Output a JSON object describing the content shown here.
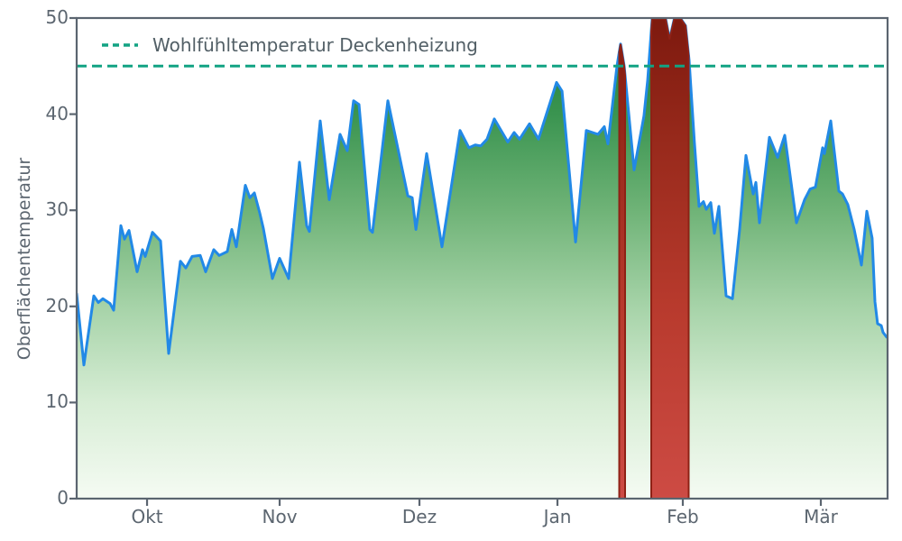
{
  "legend": {
    "label": "Wohlfühltemperatur Deckenheizung"
  },
  "chart_data": {
    "type": "area",
    "title": "",
    "xlabel": "",
    "ylabel": "Oberflächentemperatur",
    "ylim": [
      0,
      50
    ],
    "y_ticks": [
      0,
      10,
      20,
      30,
      40,
      50
    ],
    "x_ticks": [
      {
        "label": "Okt",
        "pos": 0.0868
      },
      {
        "label": "Nov",
        "pos": 0.2503
      },
      {
        "label": "Dez",
        "pos": 0.4227
      },
      {
        "label": "Jan",
        "pos": 0.5929
      },
      {
        "label": "Feb",
        "pos": 0.7475
      },
      {
        "label": "Mär",
        "pos": 0.9177
      }
    ],
    "threshold": {
      "value": 45,
      "label": "Wohlfühltemperatur Deckenheizung"
    },
    "series": {
      "name": "Oberflächentemperatur",
      "points": [
        [
          0.0,
          21.3
        ],
        [
          0.0089,
          13.9
        ],
        [
          0.0211,
          21.1
        ],
        [
          0.0267,
          20.4
        ],
        [
          0.0323,
          20.8
        ],
        [
          0.0412,
          20.3
        ],
        [
          0.0456,
          19.6
        ],
        [
          0.0545,
          28.4
        ],
        [
          0.059,
          27.0
        ],
        [
          0.0645,
          27.9
        ],
        [
          0.0745,
          23.6
        ],
        [
          0.0812,
          25.9
        ],
        [
          0.0845,
          25.2
        ],
        [
          0.0934,
          27.7
        ],
        [
          0.1034,
          26.8
        ],
        [
          0.1135,
          15.1
        ],
        [
          0.1279,
          24.7
        ],
        [
          0.1346,
          24.0
        ],
        [
          0.1424,
          25.2
        ],
        [
          0.1524,
          25.3
        ],
        [
          0.1591,
          23.6
        ],
        [
          0.1691,
          25.9
        ],
        [
          0.1757,
          25.3
        ],
        [
          0.1858,
          25.7
        ],
        [
          0.1913,
          28.0
        ],
        [
          0.1969,
          26.2
        ],
        [
          0.208,
          32.6
        ],
        [
          0.2136,
          31.3
        ],
        [
          0.2191,
          31.8
        ],
        [
          0.2258,
          29.7
        ],
        [
          0.2303,
          28.1
        ],
        [
          0.2414,
          22.9
        ],
        [
          0.2503,
          25.0
        ],
        [
          0.2614,
          22.9
        ],
        [
          0.2747,
          35.0
        ],
        [
          0.2836,
          28.4
        ],
        [
          0.287,
          27.8
        ],
        [
          0.3003,
          39.3
        ],
        [
          0.3115,
          31.1
        ],
        [
          0.3248,
          37.9
        ],
        [
          0.3337,
          36.2
        ],
        [
          0.3415,
          41.4
        ],
        [
          0.3482,
          41.0
        ],
        [
          0.3615,
          28.0
        ],
        [
          0.3649,
          27.7
        ],
        [
          0.3838,
          41.4
        ],
        [
          0.4083,
          31.5
        ],
        [
          0.4138,
          31.3
        ],
        [
          0.4183,
          28.0
        ],
        [
          0.4316,
          35.9
        ],
        [
          0.4505,
          26.2
        ],
        [
          0.4727,
          38.3
        ],
        [
          0.4838,
          36.5
        ],
        [
          0.4916,
          36.8
        ],
        [
          0.4983,
          36.7
        ],
        [
          0.5061,
          37.4
        ],
        [
          0.515,
          39.5
        ],
        [
          0.5317,
          37.1
        ],
        [
          0.5395,
          38.1
        ],
        [
          0.5462,
          37.4
        ],
        [
          0.5584,
          39.0
        ],
        [
          0.5695,
          37.4
        ],
        [
          0.5918,
          43.3
        ],
        [
          0.5985,
          42.4
        ],
        [
          0.6152,
          26.7
        ],
        [
          0.6285,
          38.3
        ],
        [
          0.6429,
          37.9
        ],
        [
          0.6507,
          38.7
        ],
        [
          0.6552,
          36.9
        ],
        [
          0.6663,
          45.0
        ],
        [
          0.6708,
          47.3
        ],
        [
          0.6752,
          45.0
        ],
        [
          0.6874,
          34.2
        ],
        [
          0.6996,
          39.8
        ],
        [
          0.7041,
          43.5
        ],
        [
          0.7097,
          49.9
        ],
        [
          0.7264,
          49.9
        ],
        [
          0.7311,
          47.8
        ],
        [
          0.7369,
          49.9
        ],
        [
          0.7452,
          49.9
        ],
        [
          0.7508,
          49.2
        ],
        [
          0.7553,
          45.6
        ],
        [
          0.7619,
          37.0
        ],
        [
          0.7675,
          30.4
        ],
        [
          0.773,
          30.9
        ],
        [
          0.7764,
          30.1
        ],
        [
          0.782,
          30.8
        ],
        [
          0.7864,
          27.6
        ],
        [
          0.792,
          30.4
        ],
        [
          0.8009,
          21.1
        ],
        [
          0.8087,
          20.8
        ],
        [
          0.8176,
          28.0
        ],
        [
          0.8254,
          35.7
        ],
        [
          0.8343,
          31.7
        ],
        [
          0.8376,
          32.9
        ],
        [
          0.8421,
          28.7
        ],
        [
          0.8543,
          37.6
        ],
        [
          0.8644,
          35.5
        ],
        [
          0.8732,
          37.8
        ],
        [
          0.8877,
          28.7
        ],
        [
          0.8977,
          31.1
        ],
        [
          0.9044,
          32.2
        ],
        [
          0.911,
          32.4
        ],
        [
          0.9199,
          36.5
        ],
        [
          0.9221,
          35.9
        ],
        [
          0.9299,
          39.3
        ],
        [
          0.9399,
          32.0
        ],
        [
          0.9444,
          31.7
        ],
        [
          0.951,
          30.6
        ],
        [
          0.9588,
          28.0
        ],
        [
          0.9677,
          24.3
        ],
        [
          0.9744,
          29.9
        ],
        [
          0.981,
          27.1
        ],
        [
          0.9844,
          20.5
        ],
        [
          0.9877,
          18.2
        ],
        [
          0.9922,
          18.0
        ],
        [
          0.9944,
          17.3
        ],
        [
          0.9989,
          16.8
        ]
      ]
    },
    "exceedance_bands": [
      {
        "from": 0.6691,
        "to": 0.6763
      },
      {
        "from": 0.7086,
        "to": 0.7547
      }
    ],
    "colors": {
      "line": "#2289e6",
      "threshold": "#12a383",
      "fill_top": "#1e7c33",
      "fill_mid": "#6fb377",
      "fill_bottom": "#f5fbf3",
      "exceed_top": "#7d190e",
      "exceed_bottom": "#cd4b44",
      "exceed_edge": "#8e2115",
      "axis": "#5b6570",
      "text": "#5c6670"
    }
  }
}
